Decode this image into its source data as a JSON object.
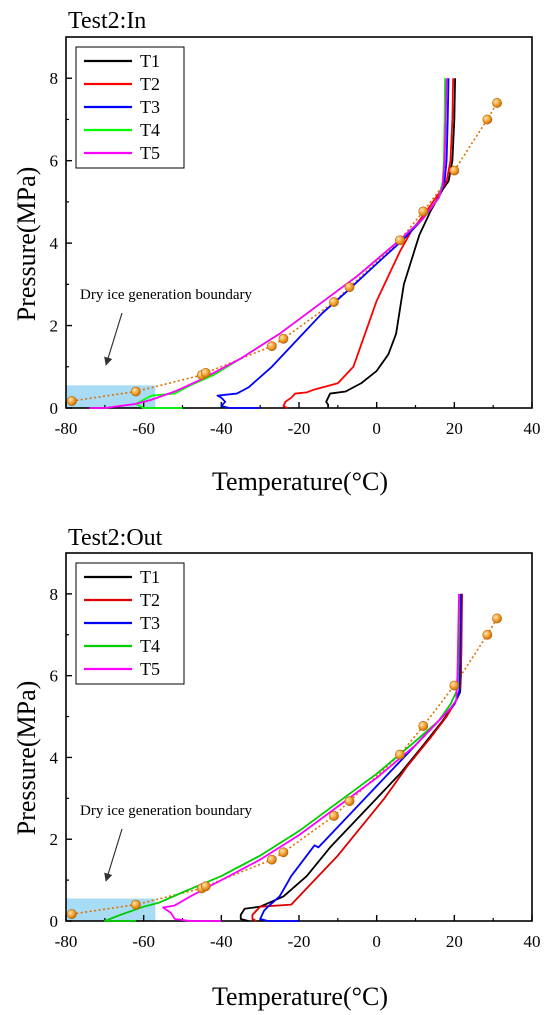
{
  "chart_data": [
    {
      "type": "line",
      "title": "Test2:In",
      "xlabel": "Temperature(°C)",
      "ylabel": "Pressure(MPa)",
      "xlim": [
        -80,
        40
      ],
      "ylim": [
        0,
        9
      ],
      "xticks": [
        -80,
        -60,
        -40,
        -20,
        0,
        20,
        40
      ],
      "yticks": [
        0,
        2,
        4,
        6,
        8
      ],
      "legend_position": "top-left",
      "annotation": "Dry ice generation boundary",
      "dry_ice_region": {
        "x": [
          -80,
          -57
        ],
        "y": [
          0,
          0.55
        ]
      },
      "series": [
        {
          "name": "T1",
          "color": "#000000",
          "points": [
            [
              -12.5,
              0
            ],
            [
              -12.5,
              0.08
            ],
            [
              -13,
              0.15
            ],
            [
              -12.5,
              0.25
            ],
            [
              -12,
              0.35
            ],
            [
              -8,
              0.4
            ],
            [
              -4,
              0.6
            ],
            [
              0,
              0.9
            ],
            [
              3,
              1.3
            ],
            [
              5,
              1.8
            ],
            [
              6,
              2.4
            ],
            [
              7,
              3
            ],
            [
              9,
              3.6
            ],
            [
              11,
              4.2
            ],
            [
              14,
              4.8
            ],
            [
              17,
              5.3
            ],
            [
              18.5,
              5.5
            ],
            [
              19.5,
              6
            ],
            [
              20,
              7
            ],
            [
              20.2,
              8
            ]
          ]
        },
        {
          "name": "T2",
          "color": "#ff0000",
          "points": [
            [
              -23,
              0
            ],
            [
              -24,
              0.05
            ],
            [
              -23.5,
              0.15
            ],
            [
              -22,
              0.25
            ],
            [
              -21,
              0.35
            ],
            [
              -18,
              0.38
            ],
            [
              -16,
              0.45
            ],
            [
              -10,
              0.6
            ],
            [
              -6,
              1
            ],
            [
              -3,
              1.8
            ],
            [
              0,
              2.6
            ],
            [
              3,
              3.2
            ],
            [
              6,
              3.8
            ],
            [
              9,
              4.3
            ],
            [
              13,
              4.8
            ],
            [
              16,
              5.2
            ],
            [
              18,
              5.5
            ],
            [
              19,
              6
            ],
            [
              19.5,
              7
            ],
            [
              19.7,
              8
            ]
          ]
        },
        {
          "name": "T3",
          "color": "#0000ff",
          "points": [
            [
              -30,
              0
            ],
            [
              -38,
              0
            ],
            [
              -40,
              0.05
            ],
            [
              -39,
              0.15
            ],
            [
              -40,
              0.25
            ],
            [
              -41,
              0.3
            ],
            [
              -36,
              0.35
            ],
            [
              -33,
              0.5
            ],
            [
              -27,
              1
            ],
            [
              -20,
              1.7
            ],
            [
              -14,
              2.3
            ],
            [
              -8,
              2.8
            ],
            [
              0,
              3.5
            ],
            [
              7,
              4.1
            ],
            [
              12,
              4.6
            ],
            [
              16,
              5.1
            ],
            [
              17.5,
              5.5
            ],
            [
              18,
              6
            ],
            [
              18.3,
              7
            ],
            [
              18.5,
              8
            ]
          ]
        },
        {
          "name": "T4",
          "color": "#00ff00",
          "points": [
            [
              -50,
              0
            ],
            [
              -60,
              0
            ],
            [
              -62,
              0.1
            ],
            [
              -58,
              0.3
            ],
            [
              -52,
              0.35
            ],
            [
              -48,
              0.55
            ],
            [
              -42,
              0.8
            ],
            [
              -35,
              1.2
            ],
            [
              -25,
              1.8
            ],
            [
              -15,
              2.5
            ],
            [
              -5,
              3.2
            ],
            [
              5,
              4
            ],
            [
              12,
              4.6
            ],
            [
              16,
              5.1
            ],
            [
              17,
              5.5
            ],
            [
              17.3,
              6
            ],
            [
              17.5,
              7
            ],
            [
              17.6,
              8
            ]
          ]
        },
        {
          "name": "T5",
          "color": "#ff00ff",
          "points": [
            [
              -74,
              0
            ],
            [
              -70,
              0
            ],
            [
              -66,
              0.05
            ],
            [
              -62,
              0.1
            ],
            [
              -58,
              0.2
            ],
            [
              -52,
              0.4
            ],
            [
              -45,
              0.7
            ],
            [
              -35,
              1.2
            ],
            [
              -25,
              1.8
            ],
            [
              -15,
              2.5
            ],
            [
              -5,
              3.2
            ],
            [
              5,
              4
            ],
            [
              12,
              4.6
            ],
            [
              16,
              5.1
            ],
            [
              17,
              5.4
            ],
            [
              17.5,
              6
            ],
            [
              17.8,
              7
            ],
            [
              18,
              8
            ]
          ]
        }
      ],
      "boundary_points": [
        [
          -78.5,
          0.17
        ],
        [
          -62,
          0.4
        ],
        [
          -45,
          0.8
        ],
        [
          -44,
          0.85
        ],
        [
          -27,
          1.5
        ],
        [
          -24,
          1.68
        ],
        [
          -11,
          2.57
        ],
        [
          -7,
          2.93
        ],
        [
          6,
          4.07
        ],
        [
          12,
          4.77
        ],
        [
          20,
          5.76
        ],
        [
          28.5,
          7
        ],
        [
          31,
          7.4
        ]
      ]
    },
    {
      "type": "line",
      "title": "Test2:Out",
      "xlabel": "Temperature(°C)",
      "ylabel": "Pressure(MPa)",
      "xlim": [
        -80,
        40
      ],
      "ylim": [
        0,
        9
      ],
      "xticks": [
        -80,
        -60,
        -40,
        -20,
        0,
        20,
        40
      ],
      "yticks": [
        0,
        2,
        4,
        6,
        8
      ],
      "legend_position": "top-left",
      "annotation": "Dry ice generation boundary",
      "dry_ice_region": {
        "x": [
          -80,
          -57
        ],
        "y": [
          0,
          0.55
        ]
      },
      "series": [
        {
          "name": "T1",
          "color": "#000000",
          "points": [
            [
              -33,
              0
            ],
            [
              -35,
              0.05
            ],
            [
              -35,
              0.15
            ],
            [
              -34,
              0.3
            ],
            [
              -30,
              0.35
            ],
            [
              -24,
              0.6
            ],
            [
              -18,
              1.1
            ],
            [
              -12,
              1.8
            ],
            [
              -6,
              2.4
            ],
            [
              0,
              3
            ],
            [
              6,
              3.6
            ],
            [
              12,
              4.3
            ],
            [
              17,
              4.9
            ],
            [
              20,
              5.3
            ],
            [
              21.5,
              5.6
            ],
            [
              21.7,
              6
            ],
            [
              21.8,
              7
            ],
            [
              21.9,
              8
            ]
          ]
        },
        {
          "name": "T2",
          "color": "#dd0000",
          "points": [
            [
              -31,
              0
            ],
            [
              -32,
              0.05
            ],
            [
              -32,
              0.15
            ],
            [
              -31,
              0.25
            ],
            [
              -30,
              0.35
            ],
            [
              -22,
              0.4
            ],
            [
              -18,
              0.8
            ],
            [
              -10,
              1.6
            ],
            [
              -4,
              2.3
            ],
            [
              2,
              3
            ],
            [
              8,
              3.8
            ],
            [
              14,
              4.5
            ],
            [
              18,
              5
            ],
            [
              20.5,
              5.4
            ],
            [
              21.5,
              5.7
            ],
            [
              21.8,
              6.5
            ],
            [
              22,
              8
            ]
          ]
        },
        {
          "name": "T3",
          "color": "#0000ff",
          "points": [
            [
              -20,
              0
            ],
            [
              -28,
              0
            ],
            [
              -30,
              0.05
            ],
            [
              -29,
              0.25
            ],
            [
              -28,
              0.35
            ],
            [
              -25,
              0.6
            ],
            [
              -22,
              1.1
            ],
            [
              -18,
              1.6
            ],
            [
              -16,
              1.85
            ],
            [
              -15,
              1.8
            ],
            [
              -12,
              2.1
            ],
            [
              -5,
              2.8
            ],
            [
              3,
              3.6
            ],
            [
              10,
              4.3
            ],
            [
              16,
              4.9
            ],
            [
              20,
              5.3
            ],
            [
              21.3,
              5.6
            ],
            [
              21.5,
              6.5
            ],
            [
              21.7,
              8
            ]
          ]
        },
        {
          "name": "T4",
          "color": "#00cc00",
          "points": [
            [
              -62,
              0
            ],
            [
              -70,
              0
            ],
            [
              -66,
              0.15
            ],
            [
              -60,
              0.35
            ],
            [
              -56,
              0.45
            ],
            [
              -50,
              0.7
            ],
            [
              -40,
              1.1
            ],
            [
              -30,
              1.6
            ],
            [
              -20,
              2.2
            ],
            [
              -10,
              2.9
            ],
            [
              0,
              3.6
            ],
            [
              10,
              4.4
            ],
            [
              16,
              4.9
            ],
            [
              19,
              5.3
            ],
            [
              20.5,
              5.6
            ],
            [
              21,
              6
            ],
            [
              21.2,
              7
            ],
            [
              21.3,
              8
            ]
          ]
        },
        {
          "name": "T5",
          "color": "#ff00ff",
          "points": [
            [
              -40,
              0
            ],
            [
              -48,
              0
            ],
            [
              -52,
              0.05
            ],
            [
              -53,
              0.2
            ],
            [
              -55,
              0.33
            ],
            [
              -52,
              0.38
            ],
            [
              -48,
              0.6
            ],
            [
              -40,
              1
            ],
            [
              -30,
              1.5
            ],
            [
              -20,
              2.1
            ],
            [
              -10,
              2.8
            ],
            [
              0,
              3.5
            ],
            [
              10,
              4.3
            ],
            [
              15,
              4.8
            ],
            [
              19,
              5.2
            ],
            [
              20.5,
              5.4
            ],
            [
              20.8,
              6
            ],
            [
              21,
              7
            ],
            [
              21.2,
              8
            ]
          ]
        }
      ],
      "boundary_points": [
        [
          -78.5,
          0.17
        ],
        [
          -62,
          0.4
        ],
        [
          -45,
          0.8
        ],
        [
          -44,
          0.85
        ],
        [
          -27,
          1.5
        ],
        [
          -24,
          1.68
        ],
        [
          -11,
          2.57
        ],
        [
          -7,
          2.93
        ],
        [
          6,
          4.07
        ],
        [
          12,
          4.77
        ],
        [
          20,
          5.76
        ],
        [
          28.5,
          7
        ],
        [
          31,
          7.4
        ]
      ]
    }
  ],
  "colors": {
    "boundary_line": "#e07000",
    "boundary_marker": "#f0a030",
    "dry_ice_fill": "#a8dcf4",
    "axis": "#000000"
  }
}
